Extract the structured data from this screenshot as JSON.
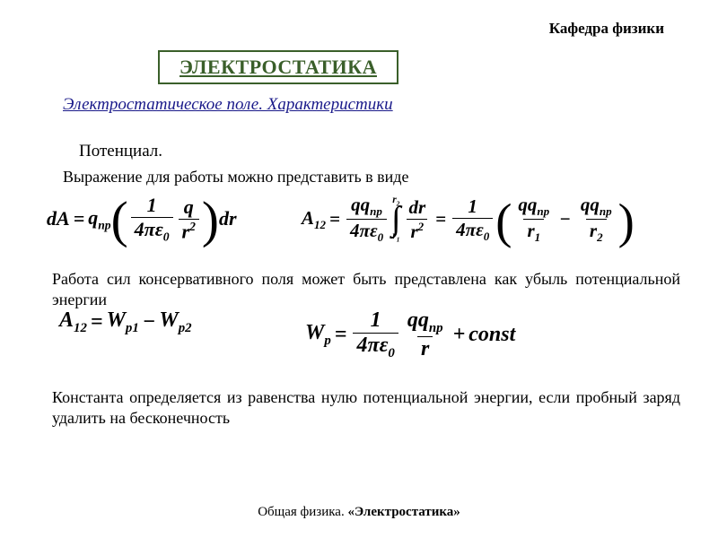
{
  "header": {
    "department": "Кафедра физики"
  },
  "title": "ЭЛЕКТРОСТАТИКА",
  "subtitle": "Электростатическое поле.  Характеристики",
  "section": "Потенциал.",
  "paragraphs": {
    "p1": "Выражение для работы можно представить в виде",
    "p2": "Работа сил консервативного поля может быть представлена как убыль потенциальной энергии",
    "p3": "Константа определяется из равенства нулю потенциальной энергии, если пробный заряд удалить на бесконечность"
  },
  "formulas": {
    "f1": {
      "lhs_dA": "dA",
      "eq": "=",
      "q_np": "q",
      "np": "np",
      "one": "1",
      "four": "4",
      "pi": "π",
      "eps": "ε",
      "zero": "0",
      "q": "q",
      "r": "r",
      "two": "2",
      "dr": "dr"
    },
    "f2": {
      "A12": "A",
      "sub12": "12",
      "eq": "=",
      "qq": "qq",
      "np": "np",
      "four": "4",
      "pi": "π",
      "eps": "ε",
      "zero": "0",
      "r1": "r",
      "s1": "1",
      "r2": "r",
      "s2": "2",
      "intsym": "∫",
      "dr": "dr",
      "r": "r",
      "two": "2",
      "one": "1",
      "minus": "−"
    },
    "f3": {
      "A12": "A",
      "sub12": "12",
      "eq": "=",
      "W": "W",
      "p1": "p1",
      "p2": "p2",
      "minus": "−"
    },
    "f4": {
      "W": "W",
      "p": "p",
      "eq": "=",
      "one": "1",
      "four": "4",
      "pi": "π",
      "eps": "ε",
      "zero": "0",
      "qq": "qq",
      "np": "np",
      "r": "r",
      "plus": "+",
      "const": "const"
    }
  },
  "footer": {
    "text_plain": "Общая физика. ",
    "text_quote": "«Электростатика»"
  },
  "colors": {
    "title_green": "#3a5f2a",
    "subtitle_blue": "#1a1a8a",
    "text": "#000000",
    "background": "#ffffff"
  },
  "typography": {
    "base_font": "Times New Roman",
    "body_size_pt": 14,
    "title_size_pt": 17,
    "formula_size_pt": 17
  }
}
